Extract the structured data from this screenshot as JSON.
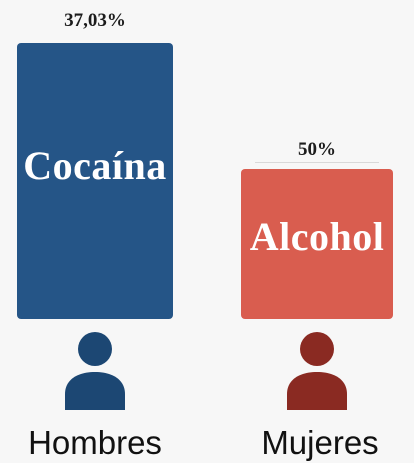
{
  "chart_data": {
    "type": "bar",
    "categories": [
      "Hombres",
      "Mujeres"
    ],
    "series": [
      {
        "values": [
          37.03,
          50
        ],
        "value_labels": [
          "37,03%",
          "50%"
        ],
        "bar_labels": [
          "Cocaína",
          "Alcohol"
        ],
        "colors": [
          "#255587",
          "#d95d4f"
        ]
      }
    ],
    "icon_colors": [
      "#1c4773",
      "#8a2a22"
    ],
    "icons": [
      "person-icon",
      "person-icon"
    ],
    "background": "#f7f7f7",
    "grid": false,
    "legend": "none",
    "title": "",
    "xlabel": "",
    "ylabel": ""
  }
}
